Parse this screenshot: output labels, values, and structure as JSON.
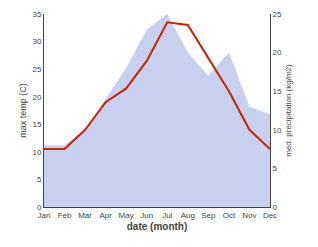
{
  "chart_data": {
    "type": "line",
    "categories": [
      "Jan",
      "Feb",
      "Mar",
      "Apr",
      "May",
      "Jun",
      "Jul",
      "Aug",
      "Sep",
      "Oct",
      "Nov",
      "Dec"
    ],
    "series": [
      {
        "type": "area",
        "axis": "y2",
        "color": "#c8d0f0",
        "values": [
          8.0,
          8.0,
          10.0,
          14.0,
          18.0,
          23.0,
          25.0,
          20.0,
          17.0,
          20.0,
          13.0,
          12.0
        ]
      },
      {
        "type": "line",
        "color": "#cc2200",
        "values": [
          10.5,
          10.5,
          14.0,
          19.0,
          21.5,
          26.5,
          33.5,
          33.0,
          27.0,
          21.0,
          14.0,
          10.5
        ]
      }
    ],
    "xlabel": "date (month)",
    "ylabel": "max temp (C)",
    "y2label": "med. precipitation (kg/m2)",
    "ylim": [
      0,
      35
    ],
    "yticks": [
      0,
      5,
      10,
      15,
      20,
      25,
      30,
      35
    ],
    "y2lim": [
      0,
      25
    ],
    "y2ticks": [
      0,
      5,
      10,
      15,
      20,
      25
    ],
    "grid": false
  }
}
